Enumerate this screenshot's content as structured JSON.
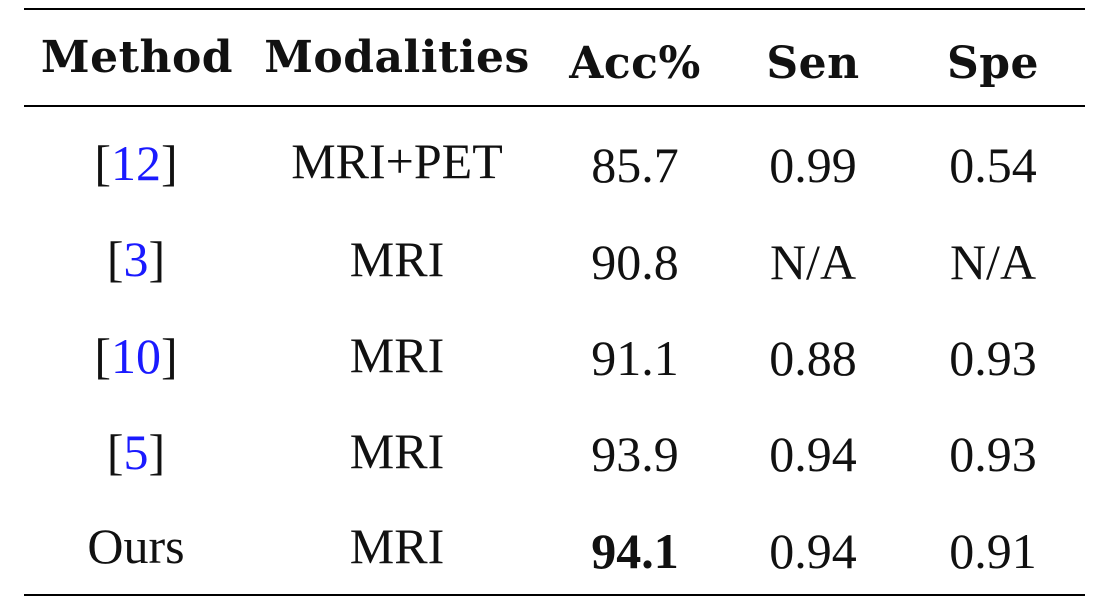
{
  "table": {
    "headers": [
      "Method",
      "Modalities",
      "Acc%",
      "Sen",
      "Spe"
    ],
    "rows": [
      {
        "method": {
          "prefix": "[",
          "ref": "12",
          "suffix": "]"
        },
        "modalities": "MRI+PET",
        "acc": "85.7",
        "sen": "0.99",
        "spe": "0.54"
      },
      {
        "method": {
          "prefix": "[",
          "ref": "3",
          "suffix": "]"
        },
        "modalities": "MRI",
        "acc": "90.8",
        "sen": "N/A",
        "spe": "N/A"
      },
      {
        "method": {
          "prefix": "[",
          "ref": "10",
          "suffix": "]"
        },
        "modalities": "MRI",
        "acc": "91.1",
        "sen": "0.88",
        "spe": "0.93"
      },
      {
        "method": {
          "prefix": "[",
          "ref": "5",
          "suffix": "]"
        },
        "modalities": "MRI",
        "acc": "93.9",
        "sen": "0.94",
        "spe": "0.93"
      },
      {
        "method": {
          "text": "Ours"
        },
        "modalities": "MRI",
        "acc": "94.1",
        "sen": "0.94",
        "spe": "0.91",
        "acc_bold": true
      }
    ]
  },
  "colors": {
    "reference_link": "#1a1aff",
    "text": "#111111",
    "rule": "#000000"
  }
}
